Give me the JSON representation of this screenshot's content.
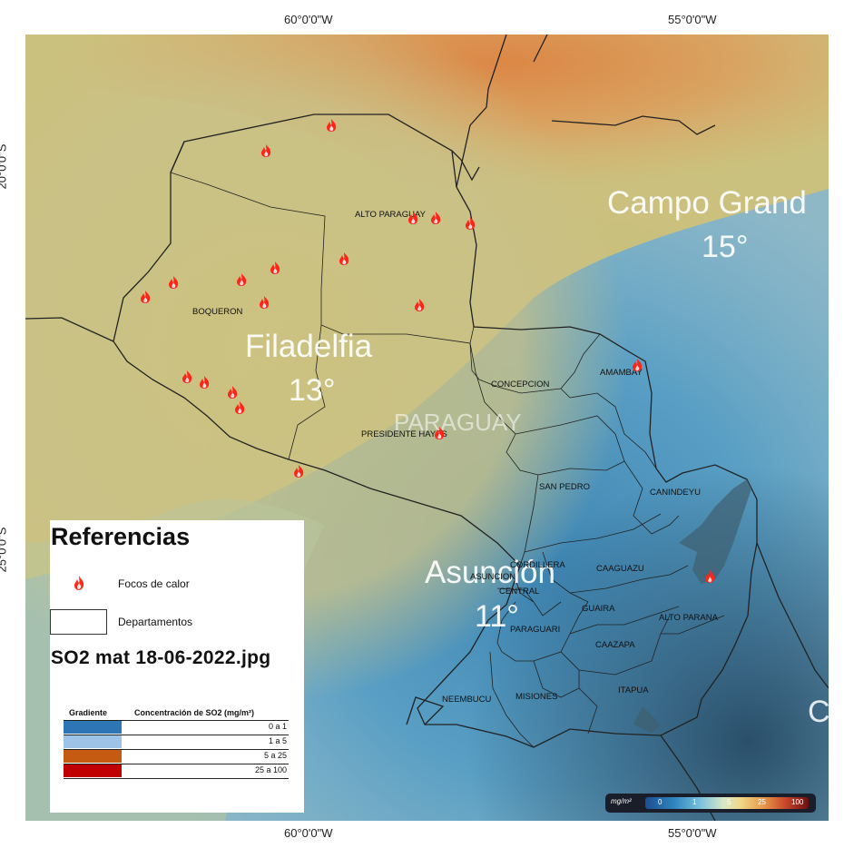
{
  "map": {
    "country_label": "PARAGUAY",
    "coordinates": {
      "top_left": "60°0'0\"W",
      "top_right": "55°0'0\"W",
      "bottom_left": "60°0'0\"W",
      "bottom_right": "55°0'0\"W",
      "left_top": "20°0'0\"S",
      "left_bottom": "25°0'0\"S",
      "right_top": "20°0'0\"S",
      "right_bottom": "25°0'0\"S"
    },
    "cities": [
      {
        "name": "Campo Grand",
        "temp": "15°"
      },
      {
        "name": "Filadelfia",
        "temp": "13°"
      },
      {
        "name": "Asunción",
        "temp": "11°"
      }
    ],
    "departments": [
      "ALTO PARAGUAY",
      "BOQUERON",
      "CONCEPCION",
      "AMAMBAY",
      "PRESIDENTE HAYES",
      "SAN PEDRO",
      "CANINDEYU",
      "CORDILLERA",
      "ASUNCION",
      "CENTRAL",
      "CAAGUAZU",
      "GUAIRA",
      "PARAGUARI",
      "ALTO PARANA",
      "CAAZAPA",
      "NEEMBUCU",
      "MISIONES",
      "ITAPUA"
    ],
    "fire_count": 22
  },
  "legend": {
    "title": "Referencias",
    "fire_label": "Focos de calor",
    "dept_label": "Departamentos",
    "file_name": "SO2  mat  18-06-2022.jpg",
    "gradient_header": "Gradiente",
    "concentration_header": "Concentración de SO2 (mg/m²)",
    "classes": [
      {
        "range": "0 a 1",
        "color": "#2e75b6"
      },
      {
        "range": "1 a 5",
        "color": "#9dc3e6"
      },
      {
        "range": "5 a 25",
        "color": "#c55a11"
      },
      {
        "range": "25 a 100",
        "color": "#c00000"
      }
    ]
  },
  "colorbar": {
    "unit": "mg/m²",
    "ticks": [
      "0",
      "1",
      "5",
      "25",
      "100"
    ]
  }
}
